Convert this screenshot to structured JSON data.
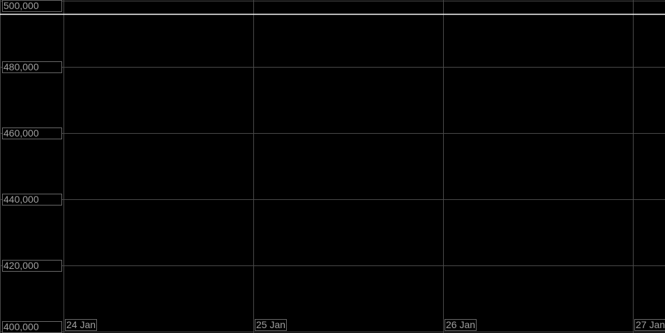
{
  "chart_data": {
    "type": "line",
    "title": "",
    "xlabel": "",
    "ylabel": "",
    "ylim": [
      400000,
      500000
    ],
    "xlim": [
      "24 Jan",
      "27 Jan"
    ],
    "grid": true,
    "y_ticks": [
      "500,000",
      "480,000",
      "460,000",
      "440,000",
      "420,000",
      "400,000"
    ],
    "y_tick_values": [
      500000,
      480000,
      460000,
      440000,
      420000,
      400000
    ],
    "x_ticks": [
      "24 Jan",
      "25 Jan",
      "26 Jan",
      "27 Jan"
    ],
    "series": [
      {
        "x": [
          "24 Jan",
          "27 Jan"
        ],
        "values": [
          496000,
          496000
        ],
        "color": "#ffffff"
      }
    ],
    "colors": {
      "background": "#000000",
      "grid": "#4a4a4a",
      "label_text": "#a0a0a0",
      "line": "#ffffff"
    }
  }
}
